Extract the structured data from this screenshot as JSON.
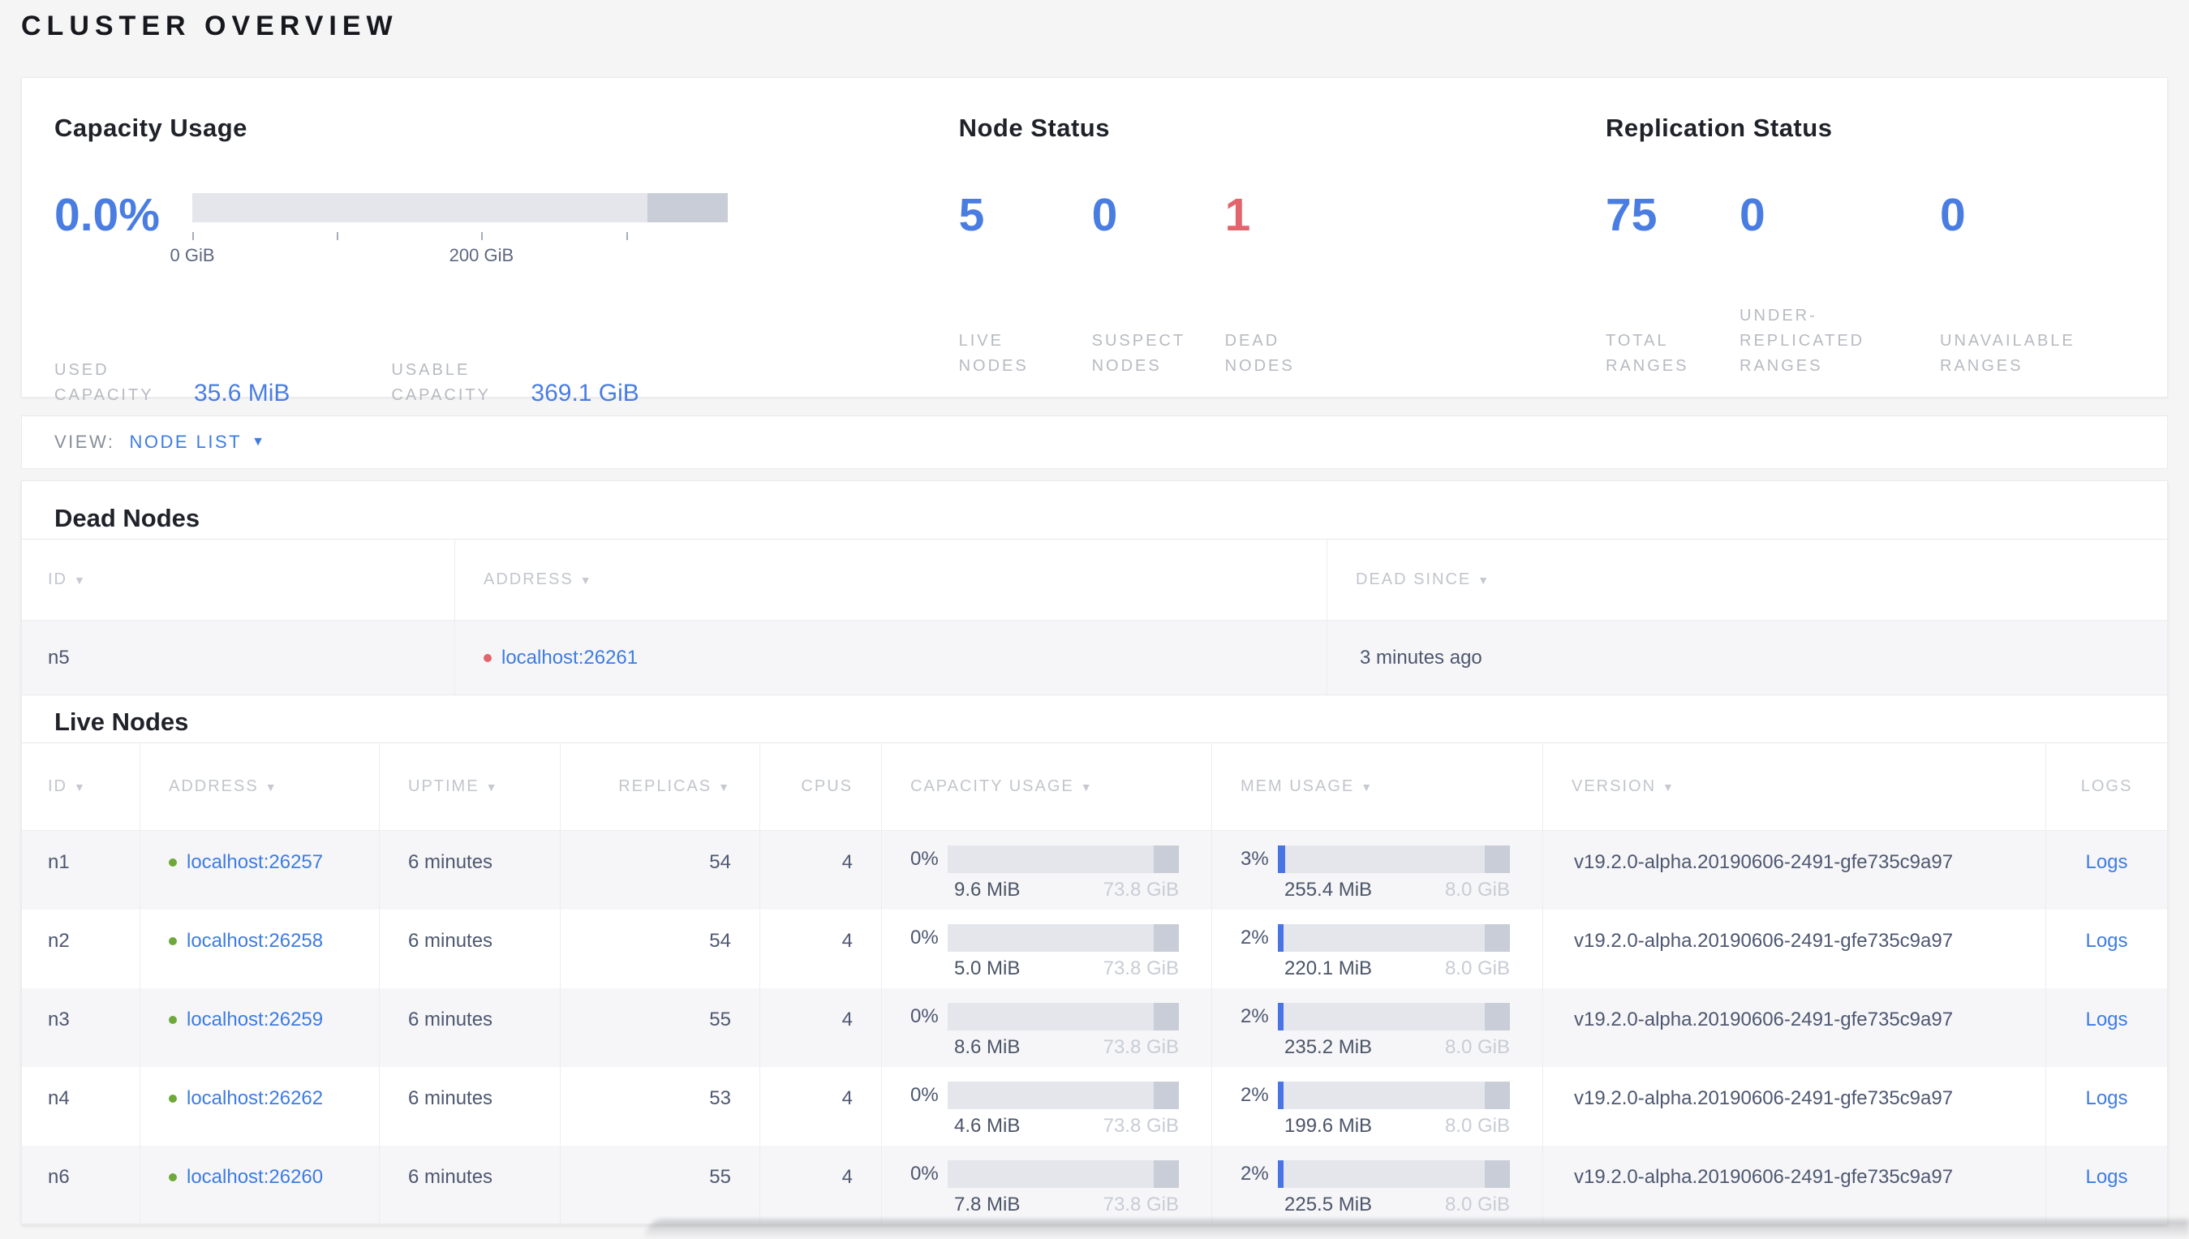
{
  "page": {
    "title": "CLUSTER OVERVIEW"
  },
  "colors": {
    "accent_blue": "#4a7de2",
    "link_blue": "#3d7ce2",
    "dead_red": "#e2646c",
    "live_green": "#6fa83a",
    "bar_track": "#e4e6ec",
    "bar_other": "#c9cdd7",
    "bar_fill": "#4a74e4"
  },
  "summary": {
    "capacity": {
      "title": "Capacity Usage",
      "percent": "0.0%",
      "bar": {
        "fill_pct": 0,
        "other_start_pct": 85,
        "other_width_pct": 15,
        "ticks": [
          {
            "pos_pct": 0,
            "label": "0 GiB"
          },
          {
            "pos_pct": 27,
            "label": ""
          },
          {
            "pos_pct": 54,
            "label": "200 GiB"
          },
          {
            "pos_pct": 81,
            "label": ""
          }
        ]
      },
      "stats": [
        {
          "label": "USED CAPACITY",
          "value": "35.6 MiB"
        },
        {
          "label": "USABLE CAPACITY",
          "value": "369.1 GiB"
        }
      ]
    },
    "nodes": {
      "title": "Node Status",
      "stats": [
        {
          "value": "5",
          "label": "LIVE NODES",
          "tone": "blue"
        },
        {
          "value": "0",
          "label": "SUSPECT NODES",
          "tone": "blue"
        },
        {
          "value": "1",
          "label": "DEAD NODES",
          "tone": "red"
        }
      ]
    },
    "replication": {
      "title": "Replication Status",
      "stats": [
        {
          "value": "75",
          "label": "TOTAL RANGES",
          "tone": "blue"
        },
        {
          "value": "0",
          "label": "UNDER-REPLICATED RANGES",
          "tone": "blue"
        },
        {
          "value": "0",
          "label": "UNAVAILABLE RANGES",
          "tone": "blue"
        }
      ]
    }
  },
  "view_bar": {
    "label": "VIEW:",
    "selected": "NODE LIST",
    "caret": "▼"
  },
  "dead_nodes": {
    "heading": "Dead Nodes",
    "columns": [
      {
        "label": "ID",
        "sortable": true
      },
      {
        "label": "ADDRESS",
        "sortable": true
      },
      {
        "label": "DEAD SINCE",
        "sortable": true
      }
    ],
    "rows": [
      {
        "id": "n5",
        "address": "localhost:26261",
        "status": "dead",
        "dead_since": "3 minutes ago"
      }
    ]
  },
  "live_nodes": {
    "heading": "Live Nodes",
    "columns": [
      {
        "label": "ID",
        "sortable": true
      },
      {
        "label": "ADDRESS",
        "sortable": true
      },
      {
        "label": "UPTIME",
        "sortable": true
      },
      {
        "label": "REPLICAS",
        "sortable": true
      },
      {
        "label": "CPUS",
        "sortable": false
      },
      {
        "label": "CAPACITY USAGE",
        "sortable": true
      },
      {
        "label": "MEM USAGE",
        "sortable": true
      },
      {
        "label": "VERSION",
        "sortable": true
      },
      {
        "label": "LOGS",
        "sortable": false
      }
    ],
    "rows": [
      {
        "id": "n1",
        "address": "localhost:26257",
        "status": "live",
        "uptime": "6 minutes",
        "replicas": "54",
        "cpus": "4",
        "capacity": {
          "percent": "0%",
          "fill_pct": 0,
          "other_pct": 11,
          "used": "9.6 MiB",
          "total": "73.8 GiB"
        },
        "mem": {
          "percent": "3%",
          "fill_pct": 3,
          "other_pct": 11,
          "used": "255.4 MiB",
          "total": "8.0 GiB"
        },
        "version": "v19.2.0-alpha.20190606-2491-gfe735c9a97",
        "logs": "Logs"
      },
      {
        "id": "n2",
        "address": "localhost:26258",
        "status": "live",
        "uptime": "6 minutes",
        "replicas": "54",
        "cpus": "4",
        "capacity": {
          "percent": "0%",
          "fill_pct": 0,
          "other_pct": 11,
          "used": "5.0 MiB",
          "total": "73.8 GiB"
        },
        "mem": {
          "percent": "2%",
          "fill_pct": 2.5,
          "other_pct": 11,
          "used": "220.1 MiB",
          "total": "8.0 GiB"
        },
        "version": "v19.2.0-alpha.20190606-2491-gfe735c9a97",
        "logs": "Logs"
      },
      {
        "id": "n3",
        "address": "localhost:26259",
        "status": "live",
        "uptime": "6 minutes",
        "replicas": "55",
        "cpus": "4",
        "capacity": {
          "percent": "0%",
          "fill_pct": 0,
          "other_pct": 11,
          "used": "8.6 MiB",
          "total": "73.8 GiB"
        },
        "mem": {
          "percent": "2%",
          "fill_pct": 2.5,
          "other_pct": 11,
          "used": "235.2 MiB",
          "total": "8.0 GiB"
        },
        "version": "v19.2.0-alpha.20190606-2491-gfe735c9a97",
        "logs": "Logs"
      },
      {
        "id": "n4",
        "address": "localhost:26262",
        "status": "live",
        "uptime": "6 minutes",
        "replicas": "53",
        "cpus": "4",
        "capacity": {
          "percent": "0%",
          "fill_pct": 0,
          "other_pct": 11,
          "used": "4.6 MiB",
          "total": "73.8 GiB"
        },
        "mem": {
          "percent": "2%",
          "fill_pct": 2.5,
          "other_pct": 11,
          "used": "199.6 MiB",
          "total": "8.0 GiB"
        },
        "version": "v19.2.0-alpha.20190606-2491-gfe735c9a97",
        "logs": "Logs"
      },
      {
        "id": "n6",
        "address": "localhost:26260",
        "status": "live",
        "uptime": "6 minutes",
        "replicas": "55",
        "cpus": "4",
        "capacity": {
          "percent": "0%",
          "fill_pct": 0,
          "other_pct": 11,
          "used": "7.8 MiB",
          "total": "73.8 GiB"
        },
        "mem": {
          "percent": "2%",
          "fill_pct": 2.5,
          "other_pct": 11,
          "used": "225.5 MiB",
          "total": "8.0 GiB"
        },
        "version": "v19.2.0-alpha.20190606-2491-gfe735c9a97",
        "logs": "Logs"
      }
    ]
  }
}
